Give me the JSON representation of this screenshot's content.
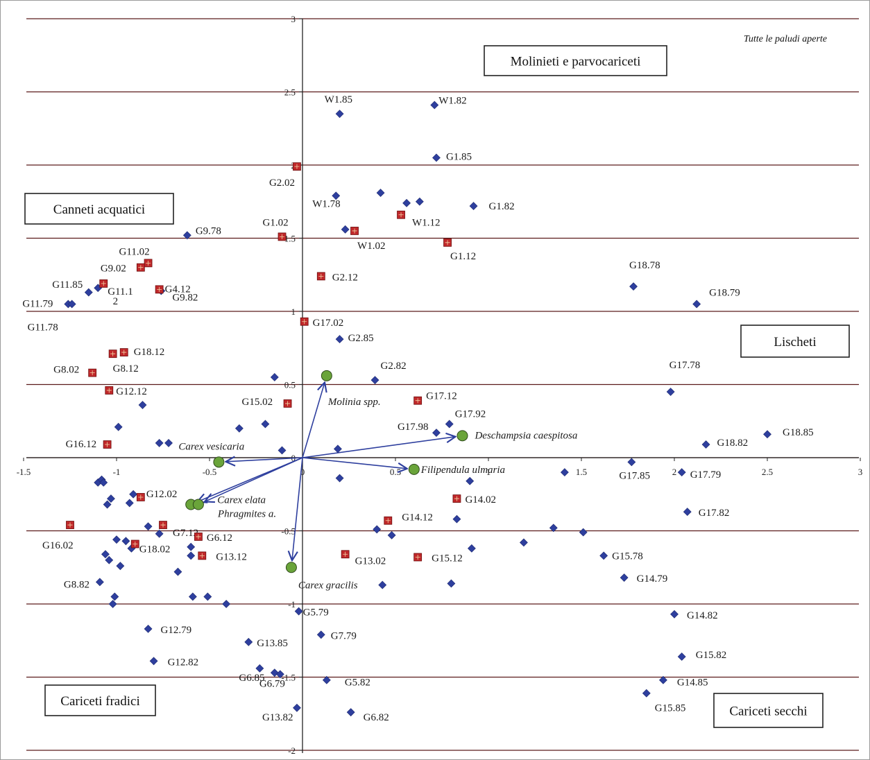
{
  "chart_data": {
    "type": "scatter",
    "title": "Tutte le paludi aperte",
    "xlim": [
      -1.5,
      3
    ],
    "ylim": [
      -2,
      3
    ],
    "x_ticks": [
      -1.5,
      -1,
      -0.5,
      0,
      0.5,
      1,
      1.5,
      2,
      2.5,
      3
    ],
    "y_ticks": [
      -2,
      -1.5,
      -1,
      -0.5,
      0,
      0.5,
      1,
      1.5,
      2,
      2.5,
      3
    ],
    "x_tick_labels": [
      "-1.5",
      "-1",
      "-0.5",
      "0",
      "0.5",
      "1",
      "1.5",
      "2",
      "2.5",
      "3"
    ],
    "y_tick_labels": [
      "-2",
      "-1.5",
      "-1",
      "-0.5",
      "0",
      "0.5",
      "1",
      "1.5",
      "2",
      "2.5",
      "3"
    ],
    "horizontal_gridlines": true,
    "regions": [
      {
        "label": "Molinieti e parvocariceti"
      },
      {
        "label": "Canneti acquatici"
      },
      {
        "label": "Lischeti"
      },
      {
        "label": "Cariceti fradici"
      },
      {
        "label": "Cariceti secchi"
      }
    ],
    "series": [
      {
        "marker": "diamond",
        "color": "#2e3f9e",
        "points": [
          {
            "x": 0.2,
            "y": 2.35,
            "label": "W1.85"
          },
          {
            "x": 0.71,
            "y": 2.41,
            "label": "W1.82"
          },
          {
            "x": 0.72,
            "y": 2.05,
            "label": "G1.85"
          },
          {
            "x": 0.18,
            "y": 1.79,
            "label": "W1.78"
          },
          {
            "x": 0.42,
            "y": 1.81,
            "label": ""
          },
          {
            "x": 0.56,
            "y": 1.74,
            "label": ""
          },
          {
            "x": 0.63,
            "y": 1.75,
            "label": ""
          },
          {
            "x": 0.92,
            "y": 1.72,
            "label": "G1.82"
          },
          {
            "x": 0.23,
            "y": 1.56,
            "label": ""
          },
          {
            "x": -0.62,
            "y": 1.52,
            "label": "G9.78"
          },
          {
            "x": -1.1,
            "y": 1.16,
            "label": "G11.1"
          },
          {
            "x": -1.15,
            "y": 1.13,
            "label": ""
          },
          {
            "x": -0.76,
            "y": 1.14,
            "label": "G9.82"
          },
          {
            "x": -1.26,
            "y": 1.05,
            "label": "G11.79"
          },
          {
            "x": -1.24,
            "y": 1.05,
            "label": "G11.78"
          },
          {
            "x": 1.78,
            "y": 1.17,
            "label": "G18.78"
          },
          {
            "x": 2.12,
            "y": 1.05,
            "label": "G18.79"
          },
          {
            "x": 0.2,
            "y": 0.81,
            "label": "G2.85"
          },
          {
            "x": 0.39,
            "y": 0.53,
            "label": "G2.82"
          },
          {
            "x": -0.15,
            "y": 0.55,
            "label": ""
          },
          {
            "x": 1.98,
            "y": 0.45,
            "label": "G17.78"
          },
          {
            "x": -0.86,
            "y": 0.36,
            "label": ""
          },
          {
            "x": -0.2,
            "y": 0.23,
            "label": ""
          },
          {
            "x": -0.34,
            "y": 0.2,
            "label": ""
          },
          {
            "x": -0.99,
            "y": 0.21,
            "label": ""
          },
          {
            "x": 0.79,
            "y": 0.23,
            "label": "G17.92"
          },
          {
            "x": 0.72,
            "y": 0.17,
            "label": "G17.98"
          },
          {
            "x": -0.77,
            "y": 0.1,
            "label": ""
          },
          {
            "x": -0.72,
            "y": 0.1,
            "label": ""
          },
          {
            "x": -0.11,
            "y": 0.05,
            "label": ""
          },
          {
            "x": 0.19,
            "y": 0.06,
            "label": ""
          },
          {
            "x": 2.17,
            "y": 0.09,
            "label": "G18.82"
          },
          {
            "x": 2.5,
            "y": 0.16,
            "label": "G18.85"
          },
          {
            "x": 1.77,
            "y": -0.03,
            "label": "G17.85"
          },
          {
            "x": 2.04,
            "y": -0.1,
            "label": "G17.79"
          },
          {
            "x": 1.41,
            "y": -0.1,
            "label": ""
          },
          {
            "x": 0.2,
            "y": -0.14,
            "label": ""
          },
          {
            "x": 0.9,
            "y": -0.16,
            "label": ""
          },
          {
            "x": -1.1,
            "y": -0.17,
            "label": ""
          },
          {
            "x": -1.08,
            "y": -0.15,
            "label": ""
          },
          {
            "x": -1.07,
            "y": -0.17,
            "label": ""
          },
          {
            "x": -1.03,
            "y": -0.28,
            "label": ""
          },
          {
            "x": -1.05,
            "y": -0.32,
            "label": ""
          },
          {
            "x": -0.91,
            "y": -0.25,
            "label": ""
          },
          {
            "x": -0.93,
            "y": -0.31,
            "label": ""
          },
          {
            "x": 2.07,
            "y": -0.37,
            "label": "G17.82"
          },
          {
            "x": 0.83,
            "y": -0.42,
            "label": ""
          },
          {
            "x": 0.4,
            "y": -0.49,
            "label": ""
          },
          {
            "x": 0.48,
            "y": -0.53,
            "label": ""
          },
          {
            "x": 1.35,
            "y": -0.48,
            "label": ""
          },
          {
            "x": 1.51,
            "y": -0.51,
            "label": ""
          },
          {
            "x": 1.19,
            "y": -0.58,
            "label": ""
          },
          {
            "x": -0.83,
            "y": -0.47,
            "label": ""
          },
          {
            "x": -0.77,
            "y": -0.52,
            "label": ""
          },
          {
            "x": -1.0,
            "y": -0.56,
            "label": ""
          },
          {
            "x": -0.95,
            "y": -0.57,
            "label": ""
          },
          {
            "x": -0.92,
            "y": -0.62,
            "label": ""
          },
          {
            "x": -0.6,
            "y": -0.61,
            "label": ""
          },
          {
            "x": -0.6,
            "y": -0.67,
            "label": ""
          },
          {
            "x": -1.06,
            "y": -0.66,
            "label": ""
          },
          {
            "x": -1.04,
            "y": -0.7,
            "label": ""
          },
          {
            "x": -0.98,
            "y": -0.74,
            "label": ""
          },
          {
            "x": -0.67,
            "y": -0.78,
            "label": ""
          },
          {
            "x": 0.91,
            "y": -0.62,
            "label": ""
          },
          {
            "x": 1.62,
            "y": -0.67,
            "label": "G15.78"
          },
          {
            "x": 1.73,
            "y": -0.82,
            "label": "G14.79"
          },
          {
            "x": -1.09,
            "y": -0.85,
            "label": "G8.82"
          },
          {
            "x": 0.8,
            "y": -0.86,
            "label": ""
          },
          {
            "x": 0.43,
            "y": -0.87,
            "label": ""
          },
          {
            "x": -1.01,
            "y": -0.95,
            "label": ""
          },
          {
            "x": -1.02,
            "y": -1.0,
            "label": ""
          },
          {
            "x": -0.59,
            "y": -0.95,
            "label": ""
          },
          {
            "x": -0.51,
            "y": -0.95,
            "label": ""
          },
          {
            "x": -0.41,
            "y": -1.0,
            "label": ""
          },
          {
            "x": -0.02,
            "y": -1.05,
            "label": "G5.79"
          },
          {
            "x": 2.0,
            "y": -1.07,
            "label": "G14.82"
          },
          {
            "x": 0.1,
            "y": -1.21,
            "label": "G7.79"
          },
          {
            "x": -0.83,
            "y": -1.17,
            "label": "G12.79"
          },
          {
            "x": -0.29,
            "y": -1.26,
            "label": "G13.85"
          },
          {
            "x": -0.8,
            "y": -1.39,
            "label": "G12.82"
          },
          {
            "x": 2.04,
            "y": -1.36,
            "label": "G15.82"
          },
          {
            "x": -0.23,
            "y": -1.44,
            "label": "G6.85"
          },
          {
            "x": -0.15,
            "y": -1.47,
            "label": ""
          },
          {
            "x": -0.12,
            "y": -1.48,
            "label": "G6.79"
          },
          {
            "x": 0.13,
            "y": -1.52,
            "label": "G5.82"
          },
          {
            "x": 1.94,
            "y": -1.52,
            "label": "G14.85"
          },
          {
            "x": 1.85,
            "y": -1.61,
            "label": "G15.85"
          },
          {
            "x": -0.03,
            "y": -1.71,
            "label": "G13.82"
          },
          {
            "x": 0.26,
            "y": -1.74,
            "label": "G6.82"
          }
        ]
      },
      {
        "marker": "square",
        "color": "#c0282a",
        "points": [
          {
            "x": -0.03,
            "y": 1.99,
            "label": "G2.02"
          },
          {
            "x": 0.53,
            "y": 1.66,
            "label": "W1.12"
          },
          {
            "x": 0.28,
            "y": 1.55,
            "label": "W1.02"
          },
          {
            "x": -0.11,
            "y": 1.51,
            "label": "G1.02"
          },
          {
            "x": 0.78,
            "y": 1.47,
            "label": "G1.12"
          },
          {
            "x": -0.83,
            "y": 1.33,
            "label": "G11.02"
          },
          {
            "x": -0.87,
            "y": 1.3,
            "label": "G9.02"
          },
          {
            "x": 0.1,
            "y": 1.24,
            "label": "G2.12"
          },
          {
            "x": -1.07,
            "y": 1.19,
            "label": "G11.85"
          },
          {
            "x": -0.77,
            "y": 1.15,
            "label": "G4.12"
          },
          {
            "x": 0.01,
            "y": 0.93,
            "label": "G17.02"
          },
          {
            "x": -0.96,
            "y": 0.72,
            "label": "G18.12"
          },
          {
            "x": -1.02,
            "y": 0.71,
            "label": "G8.12"
          },
          {
            "x": -1.13,
            "y": 0.58,
            "label": "G8.02"
          },
          {
            "x": -1.04,
            "y": 0.46,
            "label": "G12.12"
          },
          {
            "x": 0.62,
            "y": 0.39,
            "label": "G17.12"
          },
          {
            "x": -0.08,
            "y": 0.37,
            "label": "G15.02"
          },
          {
            "x": -1.05,
            "y": 0.09,
            "label": "G16.12"
          },
          {
            "x": -0.87,
            "y": -0.27,
            "label": "G12.02"
          },
          {
            "x": 0.83,
            "y": -0.28,
            "label": "G14.02"
          },
          {
            "x": -1.25,
            "y": -0.46,
            "label": "G16.02"
          },
          {
            "x": -0.75,
            "y": -0.46,
            "label": "G7.12"
          },
          {
            "x": 0.46,
            "y": -0.43,
            "label": "G14.12"
          },
          {
            "x": -0.56,
            "y": -0.54,
            "label": "G6.12"
          },
          {
            "x": -0.9,
            "y": -0.59,
            "label": "G18.02"
          },
          {
            "x": -0.54,
            "y": -0.67,
            "label": "G13.12"
          },
          {
            "x": 0.23,
            "y": -0.66,
            "label": "G13.02"
          },
          {
            "x": 0.62,
            "y": -0.68,
            "label": "G15.12"
          }
        ]
      }
    ],
    "vectors": [
      {
        "x": 0.13,
        "y": 0.56,
        "label": "Molinia spp."
      },
      {
        "x": 0.86,
        "y": 0.15,
        "label": "Deschampsia caespitosa"
      },
      {
        "x": 0.6,
        "y": -0.08,
        "label": "Filipendula ulmaria"
      },
      {
        "x": -0.45,
        "y": -0.03,
        "label": "Carex vesicaria"
      },
      {
        "x": -0.6,
        "y": -0.32,
        "label": "Carex elata"
      },
      {
        "x": -0.56,
        "y": -0.32,
        "label": "Phragmites a."
      },
      {
        "x": -0.06,
        "y": -0.75,
        "label": "Carex gracilis"
      }
    ],
    "fragments": [
      {
        "text": "2",
        "anchor": "G11.1"
      }
    ]
  }
}
